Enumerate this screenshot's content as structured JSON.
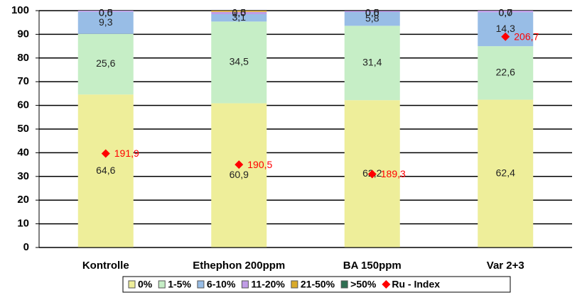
{
  "chart_data": {
    "type": "stacked-bar",
    "categories": [
      "Kontrolle",
      "Ethephon 200ppm",
      "BA 150ppm",
      "Var 2+3"
    ],
    "series": [
      {
        "name": "0%",
        "color": "#eeee9a",
        "values": [
          64.6,
          60.9,
          62.2,
          62.4
        ],
        "value_labels": [
          "64,6",
          "60,9",
          "62,2",
          "62,4"
        ]
      },
      {
        "name": "1-5%",
        "color": "#c6eec6",
        "values": [
          25.6,
          34.5,
          31.4,
          22.6
        ],
        "value_labels": [
          "25,6",
          "34,5",
          "31,4",
          "22,6"
        ]
      },
      {
        "name": "6-10%",
        "color": "#98bde6",
        "values": [
          9.3,
          3.1,
          5.8,
          14.3
        ],
        "value_labels": [
          "9,3",
          "3,1",
          "5,8",
          "14,3"
        ]
      },
      {
        "name": "11-20%",
        "color": "#c09ce6",
        "values": [
          0.5,
          1.0,
          0.5,
          0.7
        ],
        "value_labels": [
          "0,5",
          "1,0",
          "0,5",
          "0,7"
        ]
      },
      {
        "name": "21-50%",
        "color": "#d9aa2a",
        "values": [
          0.0,
          0.5,
          0.0,
          0.0
        ],
        "value_labels": [
          "0,0",
          "0,5",
          "0,0",
          "0,0"
        ]
      },
      {
        "name": ">50%",
        "color": "#2e6e52",
        "values": [
          0.0,
          0.0,
          0.0,
          0.0
        ],
        "value_labels": [
          "0,0",
          "0,0",
          "0,0",
          "0,0"
        ]
      },
      {
        "name": "Ru - Index",
        "color": "#ff0000",
        "axis": "y2",
        "values": [
          191.9,
          190.5,
          189.3,
          206.7
        ],
        "value_labels": [
          "191,9",
          "190,5",
          "189,3",
          "206,7"
        ]
      }
    ],
    "ylim": [
      0,
      100
    ],
    "yticks": [
      0,
      10,
      20,
      30,
      40,
      50,
      60,
      70,
      80,
      90,
      100
    ],
    "y2lim": [
      180,
      210
    ],
    "grid": true,
    "legend": "bottom"
  }
}
